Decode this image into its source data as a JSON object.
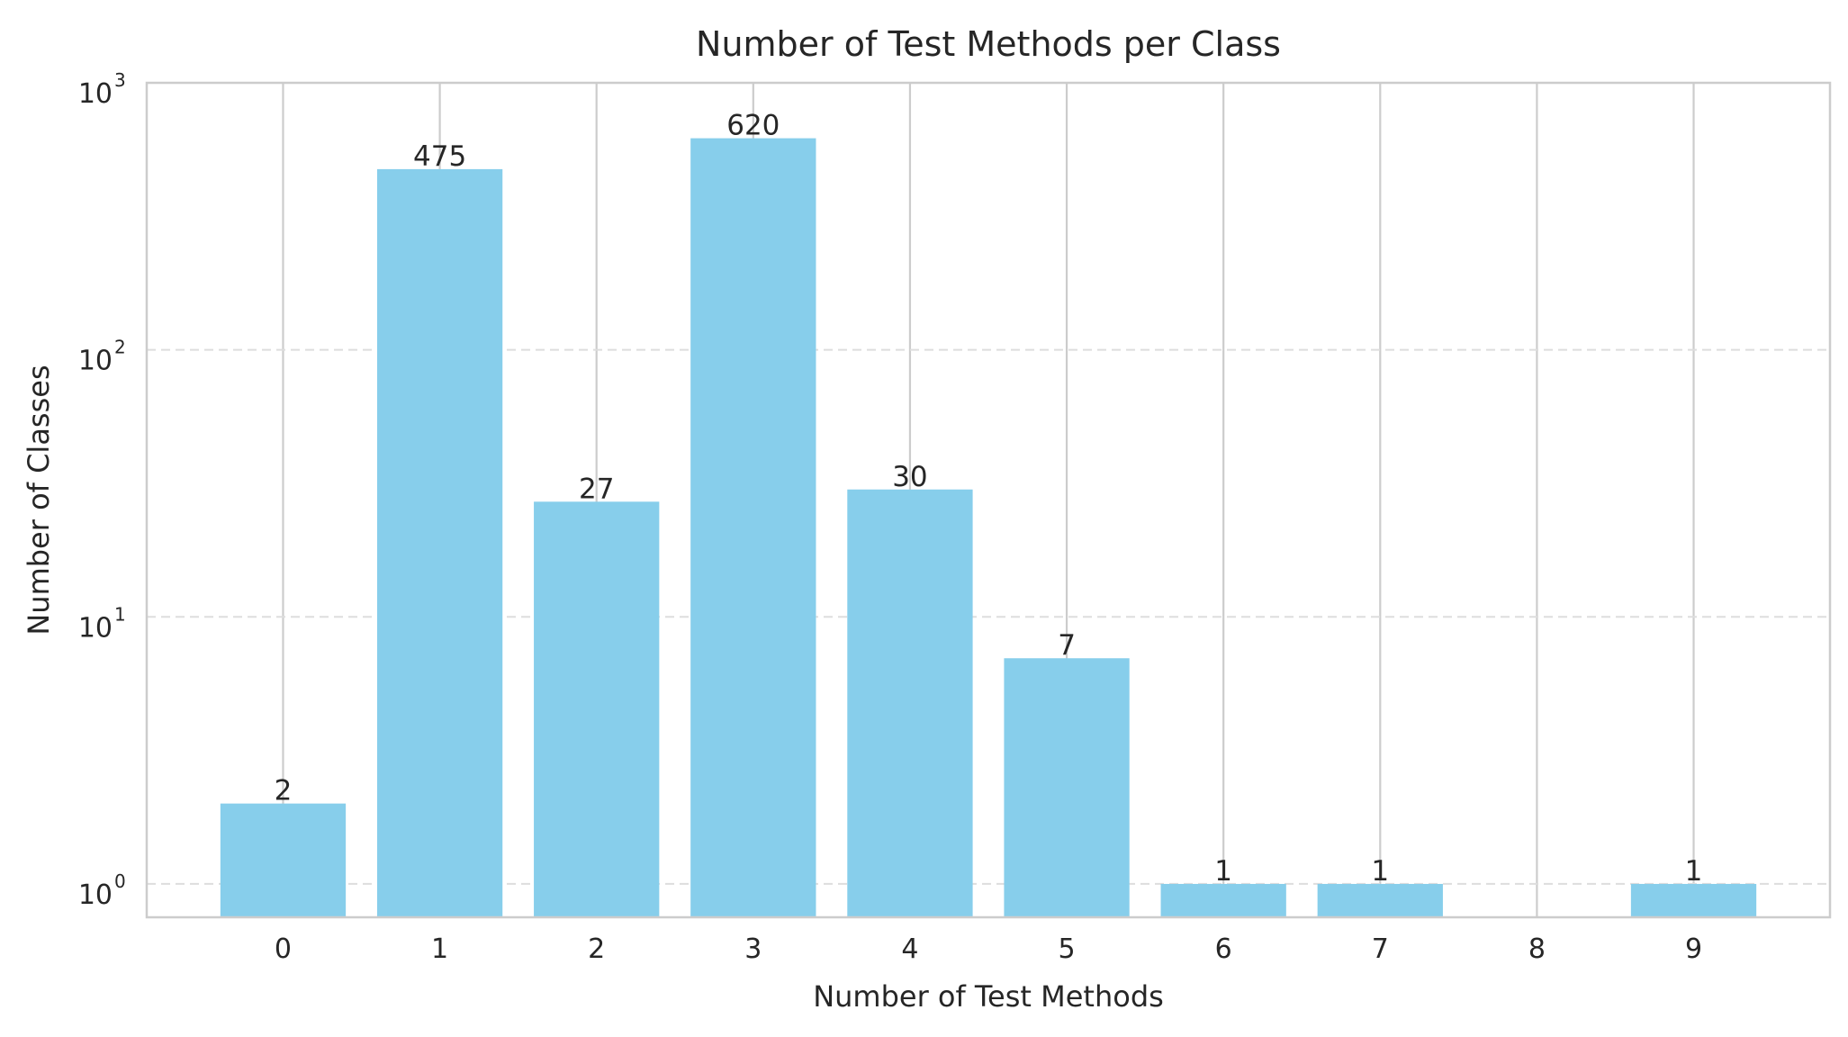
{
  "chart_data": {
    "type": "bar",
    "title": "Number of Test Methods per Class",
    "xlabel": "Number of Test Methods",
    "ylabel": "Number of Classes",
    "categories": [
      "0",
      "1",
      "2",
      "3",
      "4",
      "5",
      "6",
      "7",
      "8",
      "9"
    ],
    "values": [
      2,
      475,
      27,
      620,
      30,
      7,
      1,
      1,
      null,
      1
    ],
    "bar_labels": [
      "2",
      "475",
      "27",
      "620",
      "30",
      "7",
      "1",
      "1",
      "",
      "1"
    ],
    "yscale": "log",
    "ylim": [
      0.75,
      1000
    ],
    "yticks": [
      {
        "value": 1,
        "base": "10",
        "exp": "0"
      },
      {
        "value": 10,
        "base": "10",
        "exp": "1"
      },
      {
        "value": 100,
        "base": "10",
        "exp": "2"
      },
      {
        "value": 1000,
        "base": "10",
        "exp": "3"
      }
    ],
    "grid": {
      "x": "solid",
      "y": "dashed"
    },
    "colors": {
      "bar": "#87CEEB",
      "grid": "#CCCCCC",
      "grid_dashed": "#DDDDDD",
      "frame": "#CCCCCC",
      "text": "#262626"
    }
  }
}
